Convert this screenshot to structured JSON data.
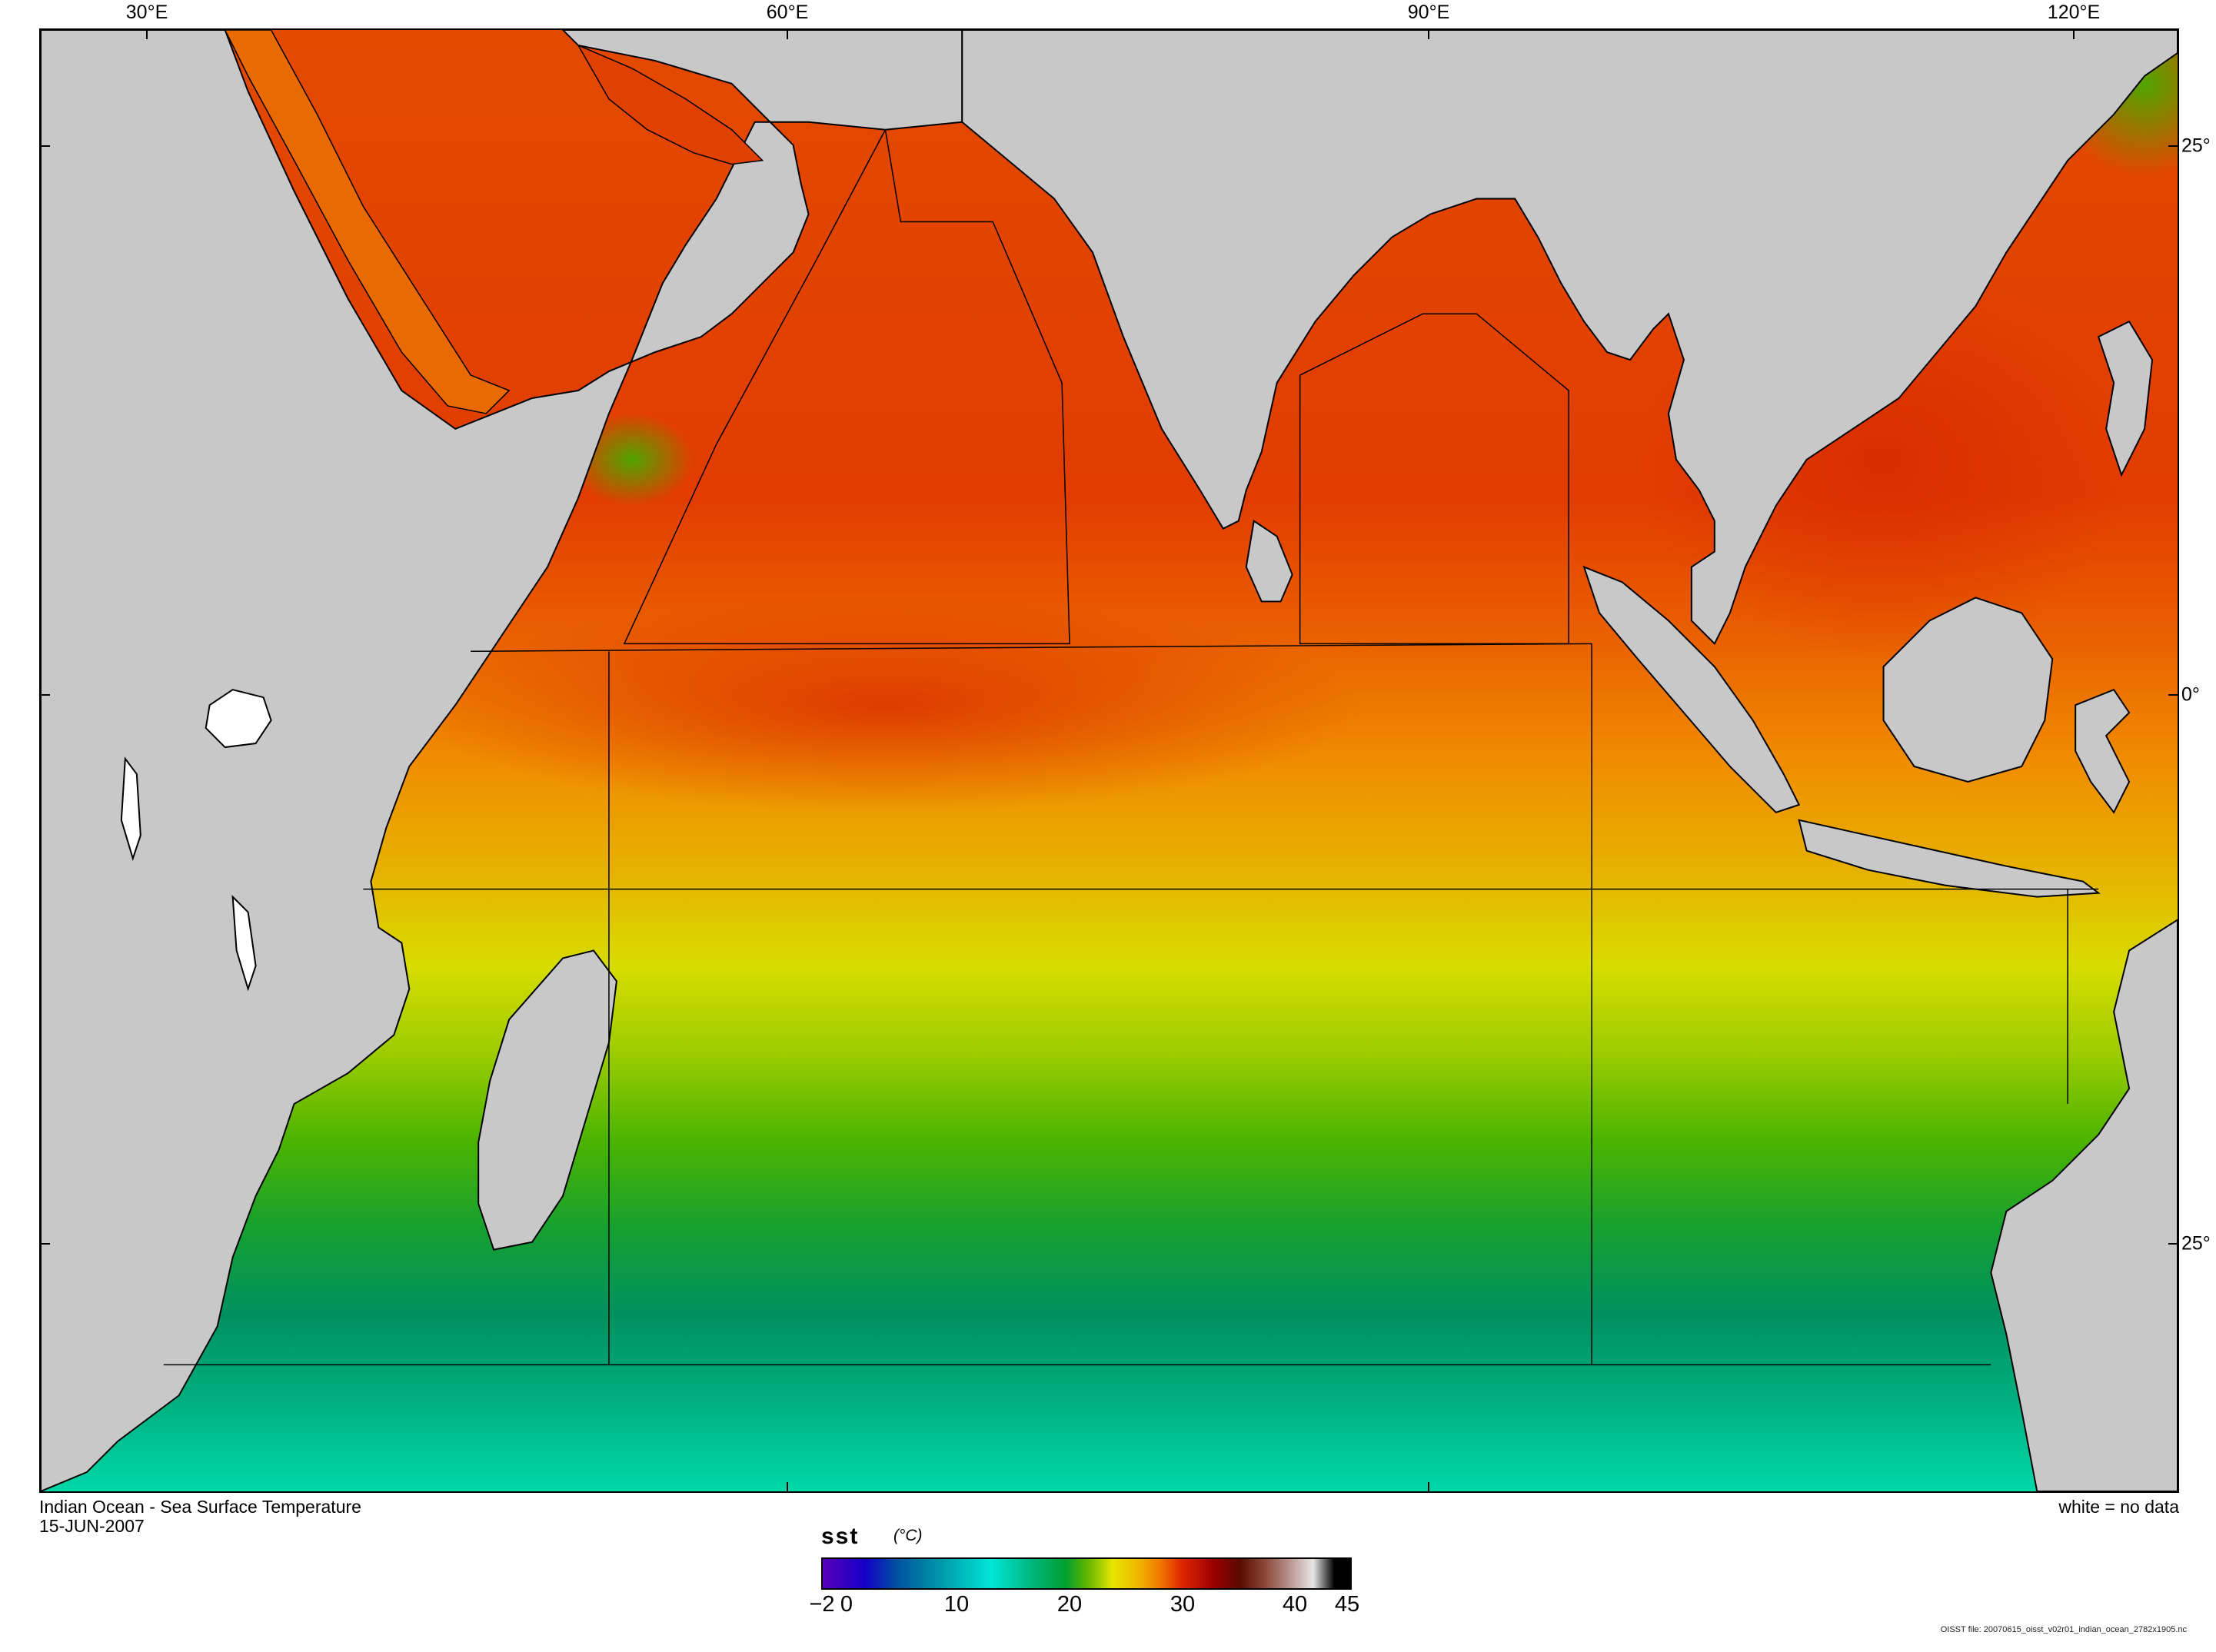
{
  "map": {
    "title": "Indian Ocean - Sea Surface Temperature",
    "date": "15-JUN-2007",
    "no_data_note": "white = no data",
    "longitude_labels": [
      "30°E",
      "60°E",
      "90°E",
      "120°E"
    ],
    "latitude_labels": [
      "25°",
      "0°",
      "25°"
    ],
    "colors": {
      "land": "#c8c8c8",
      "no_data": "#ffffff",
      "coastline": "#000000"
    }
  },
  "colorbar": {
    "variable": "sst",
    "unit": "(°C)",
    "tick_labels": [
      "−2",
      "0",
      "10",
      "20",
      "30",
      "40",
      "45"
    ],
    "range": [
      -2,
      45
    ]
  },
  "footer": {
    "file_note": "OISST file: 20070615_oisst_v02r01_indian_ocean_2782x1905.nc"
  }
}
